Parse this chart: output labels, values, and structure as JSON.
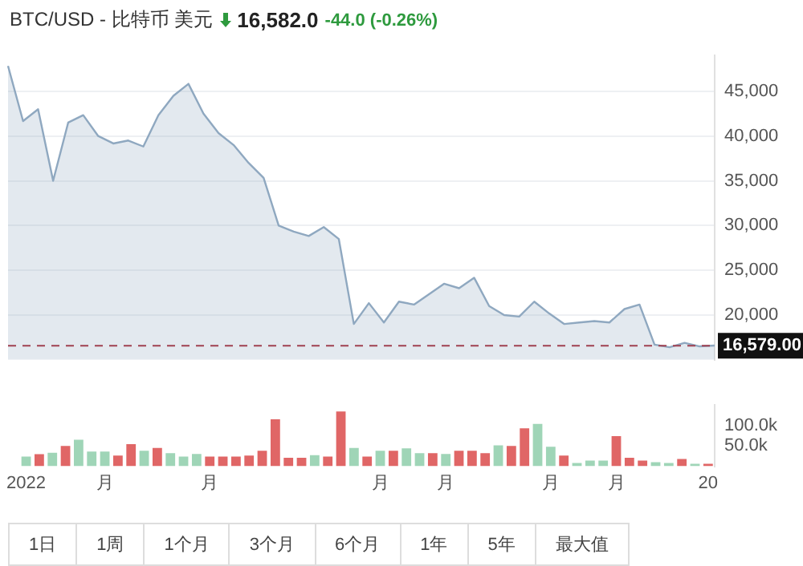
{
  "chart_data": [
    {
      "type": "area",
      "title": "BTC/USD - 比特币 美元",
      "subtitle": "16,582.0",
      "annotations": [
        "-44.0 (-0.26%)"
      ],
      "categories": [
        null,
        null,
        null,
        null,
        null,
        null,
        null,
        null,
        null,
        null,
        null,
        null,
        null,
        null,
        null,
        null,
        null,
        null,
        null,
        null,
        null,
        null,
        null,
        null,
        null,
        null,
        null,
        null,
        null,
        null,
        null,
        null,
        null,
        null,
        null,
        null,
        null,
        null,
        null,
        null,
        null,
        null,
        null,
        null,
        null,
        null,
        null,
        null
      ],
      "values": [
        47830,
        41670,
        43000,
        35000,
        41500,
        42330,
        40000,
        39170,
        39500,
        38830,
        42330,
        44500,
        45830,
        42500,
        40330,
        39000,
        37000,
        35330,
        30000,
        29330,
        28830,
        29830,
        28500,
        19000,
        21330,
        19170,
        21500,
        21170,
        22330,
        23500,
        23000,
        24170,
        21000,
        20000,
        19830,
        21500,
        20170,
        19000,
        19170,
        19330,
        19170,
        20670,
        21170,
        16700,
        16400,
        16900,
        16500,
        16600
      ],
      "color": "#8fa8c0",
      "ylim": [
        15000,
        49000
      ],
      "yticks": [
        {
          "value": 20000,
          "label": "20,000"
        },
        {
          "value": 25000,
          "label": "25,000"
        },
        {
          "value": 30000,
          "label": "30,000"
        },
        {
          "value": 35000,
          "label": "35,000"
        },
        {
          "value": 40000,
          "label": "40,000"
        },
        {
          "value": 45000,
          "label": "45,000"
        }
      ],
      "grid": "y",
      "tick_labels": "y",
      "ref_lines": [
        {
          "axis": "y",
          "value": 16579,
          "label": "16,579.00",
          "color": "#a04050",
          "line_style": "dashed"
        }
      ]
    },
    {
      "type": "bar",
      "annotations": [
        "1日",
        "1周",
        "1个月",
        "3个月",
        "6个月",
        "1年",
        "5年",
        "最大值"
      ],
      "categories": [
        "2022",
        null,
        null,
        null,
        null,
        null,
        "月",
        null,
        null,
        null,
        null,
        null,
        null,
        null,
        "月",
        null,
        null,
        null,
        null,
        null,
        null,
        null,
        null,
        null,
        null,
        null,
        null,
        "月",
        null,
        null,
        null,
        null,
        "月",
        null,
        null,
        null,
        null,
        null,
        null,
        null,
        "月",
        null,
        null,
        null,
        null,
        "月",
        null,
        null,
        null,
        null,
        null,
        null,
        "20"
      ],
      "values": [
        23800,
        29800,
        33000,
        50000,
        65000,
        36000,
        36000,
        26000,
        54000,
        38000,
        45000,
        32000,
        24000,
        30000,
        24000,
        24000,
        24000,
        26000,
        38000,
        115000,
        21000,
        21000,
        27000,
        24000,
        134000,
        45000,
        24000,
        38000,
        38000,
        44000,
        32000,
        32000,
        30000,
        38000,
        38000,
        32000,
        51000,
        50000,
        93000,
        104000,
        48000,
        26000,
        8000,
        14000,
        14000,
        74000,
        21000,
        14000,
        10000,
        8000,
        18000,
        6000,
        6000
      ],
      "colors": [
        "#9fd5b7",
        "#e06666",
        "#9fd5b7",
        "#e06666",
        "#9fd5b7",
        "#9fd5b7",
        "#9fd5b7",
        "#e06666",
        "#e06666",
        "#9fd5b7",
        "#e06666",
        "#9fd5b7",
        "#9fd5b7",
        "#9fd5b7",
        "#e06666",
        "#e06666",
        "#e06666",
        "#e06666",
        "#e06666",
        "#e06666",
        "#e06666",
        "#e06666",
        "#9fd5b7",
        "#e06666",
        "#e06666",
        "#9fd5b7",
        "#e06666",
        "#9fd5b7",
        "#e06666",
        "#9fd5b7",
        "#9fd5b7",
        "#e06666",
        "#9fd5b7",
        "#e06666",
        "#e06666",
        "#e06666",
        "#9fd5b7",
        "#e06666",
        "#e06666",
        "#9fd5b7",
        "#9fd5b7",
        "#e06666",
        "#9fd5b7",
        "#9fd5b7",
        "#9fd5b7",
        "#e06666",
        "#e06666",
        "#e06666",
        "#9fd5b7",
        "#9fd5b7",
        "#e06666",
        "#9fd5b7",
        "#e06666"
      ],
      "ylim": [
        0,
        150000
      ],
      "yticks": [
        {
          "value": 50000,
          "label": "50.0k"
        },
        {
          "value": 100000,
          "label": "100.0k"
        }
      ]
    }
  ]
}
